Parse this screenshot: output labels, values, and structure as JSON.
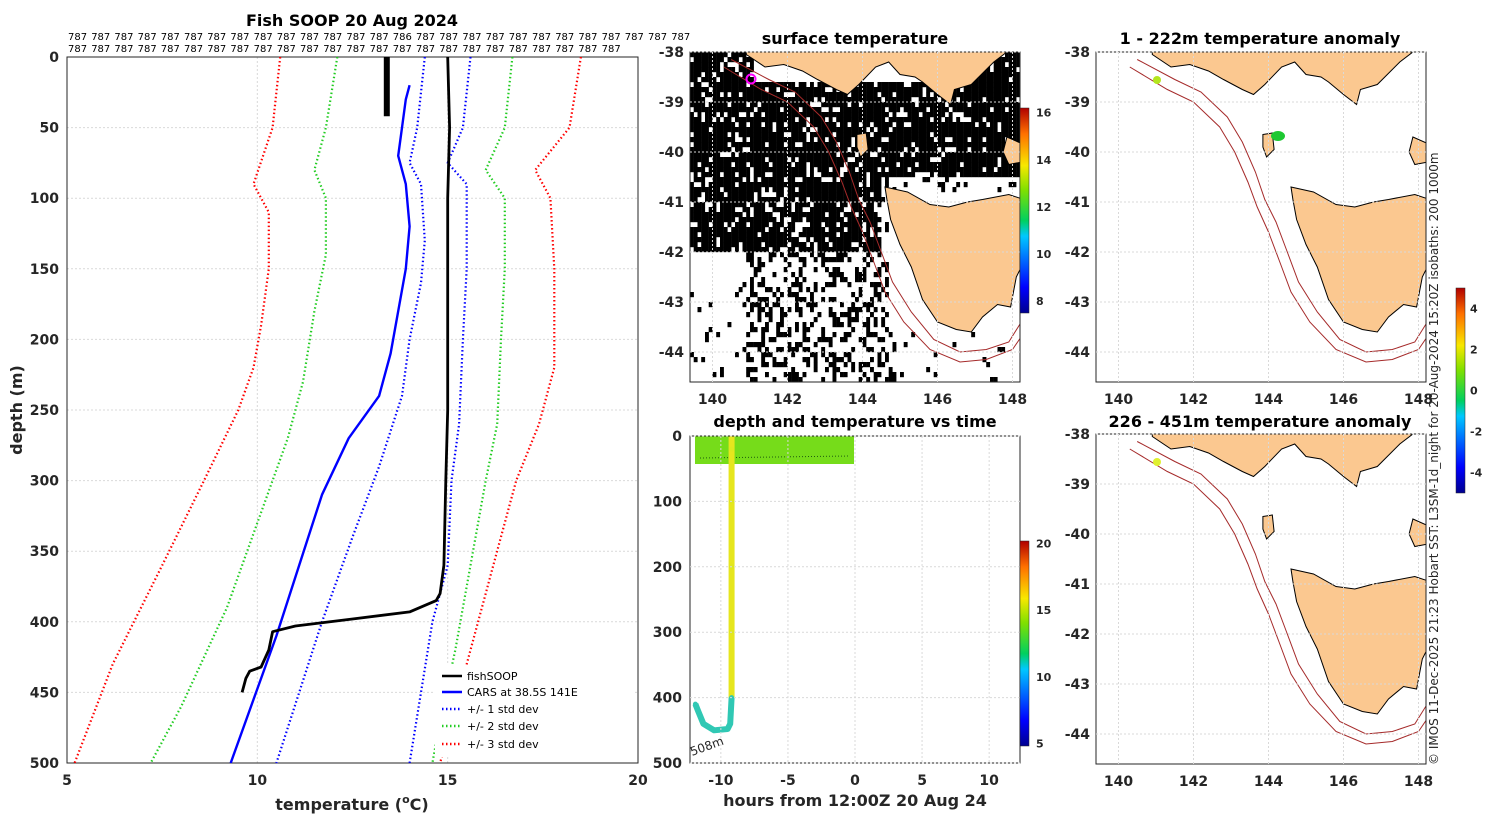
{
  "colors": {
    "fishsoop": "#000000",
    "cars": "#0000ff",
    "std1": "#0000ff",
    "std2": "#22cc22",
    "std3": "#ff0000",
    "land": "#fbc890",
    "isobath": "#a52a2a",
    "grid": "#d9d9d9"
  },
  "credit": "© IMOS 11-Dec-2025 21:23 Hobart SST: L3SM-1d_night for 20-Aug-2024 15:20Z isobaths: 200  1000m",
  "chart_data": [
    {
      "id": "profile",
      "type": "line",
      "title": "Fish SOOP 20 Aug 2024",
      "xlabel_main": "temperature (",
      "xlabel_sup": "o",
      "xlabel_end": "C)",
      "ylabel": "depth (m)",
      "xlim": [
        5,
        20
      ],
      "ylim": [
        0,
        500
      ],
      "xticks": [
        "5",
        "10",
        "15",
        "20"
      ],
      "yticks": [
        "0",
        "50",
        "100",
        "150",
        "200",
        "250",
        "300",
        "350",
        "400",
        "450",
        "500"
      ],
      "count_row1": [
        "787",
        "787",
        "787",
        "787",
        "787",
        "787",
        "787",
        "787",
        "787",
        "787",
        "787",
        "787",
        "787",
        "787",
        "786",
        "787",
        "787",
        "787",
        "787",
        "787",
        "787",
        "787",
        "787",
        "787",
        "787",
        "787",
        "787"
      ],
      "count_row2": [
        "787",
        "787",
        "787",
        "787",
        "787",
        "787",
        "787",
        "787",
        "787",
        "787",
        "787",
        "787",
        "787",
        "787",
        "787",
        "787",
        "787",
        "787",
        "787",
        "787",
        "787",
        "787",
        "787",
        "787"
      ],
      "legend": [
        "fishSOOP",
        "CARS at 38.5S 141E",
        "+/- 1 std dev",
        "+/- 2 std dev",
        "+/- 3 std dev"
      ],
      "series": [
        {
          "name": "fishSOOP",
          "points": [
            [
              15.0,
              0
            ],
            [
              15.05,
              50
            ],
            [
              15.0,
              100
            ],
            [
              15.0,
              150
            ],
            [
              15.0,
              250
            ],
            [
              14.95,
              300
            ],
            [
              14.9,
              360
            ],
            [
              14.8,
              380
            ],
            [
              14.7,
              385
            ],
            [
              14.0,
              393
            ],
            [
              12.5,
              398
            ],
            [
              11.0,
              403
            ],
            [
              10.4,
              407
            ],
            [
              10.3,
              420
            ],
            [
              10.1,
              432
            ],
            [
              9.8,
              435
            ],
            [
              9.7,
              440
            ],
            [
              9.6,
              450
            ]
          ]
        },
        {
          "name": "fishSOOP-stub",
          "points": [
            [
              13.4,
              0
            ],
            [
              13.4,
              42
            ]
          ]
        },
        {
          "name": "CARS",
          "points": [
            [
              14.0,
              20
            ],
            [
              13.9,
              30
            ],
            [
              13.8,
              50
            ],
            [
              13.7,
              70
            ],
            [
              13.9,
              90
            ],
            [
              14.0,
              120
            ],
            [
              13.9,
              150
            ],
            [
              13.7,
              180
            ],
            [
              13.5,
              210
            ],
            [
              13.2,
              240
            ],
            [
              12.4,
              270
            ],
            [
              11.7,
              310
            ],
            [
              11.1,
              360
            ],
            [
              10.5,
              410
            ],
            [
              9.9,
              455
            ],
            [
              9.3,
              500
            ]
          ]
        },
        {
          "name": "+1 std",
          "points": [
            [
              14.4,
              0
            ],
            [
              14.2,
              50
            ],
            [
              14.0,
              75
            ],
            [
              14.3,
              90
            ],
            [
              14.4,
              130
            ],
            [
              14.3,
              160
            ],
            [
              14.0,
              200
            ],
            [
              13.8,
              240
            ],
            [
              13.2,
              290
            ],
            [
              12.5,
              340
            ],
            [
              11.7,
              400
            ],
            [
              10.5,
              500
            ]
          ]
        },
        {
          "name": "-1 std",
          "points": [
            [
              15.6,
              0
            ],
            [
              15.4,
              50
            ],
            [
              15.0,
              75
            ],
            [
              15.5,
              90
            ],
            [
              15.5,
              150
            ],
            [
              15.4,
              200
            ],
            [
              15.3,
              260
            ],
            [
              15.1,
              300
            ],
            [
              15.0,
              360
            ],
            [
              14.6,
              400
            ],
            [
              14.3,
              450
            ],
            [
              14.0,
              500
            ]
          ]
        },
        {
          "name": "+2 std",
          "points": [
            [
              12.1,
              0
            ],
            [
              11.8,
              50
            ],
            [
              11.5,
              80
            ],
            [
              11.8,
              100
            ],
            [
              11.8,
              140
            ],
            [
              11.5,
              180
            ],
            [
              11.2,
              230
            ],
            [
              10.8,
              270
            ],
            [
              10.0,
              330
            ],
            [
              9.2,
              390
            ],
            [
              8.0,
              460
            ],
            [
              7.2,
              500
            ]
          ]
        },
        {
          "name": "-2 std",
          "points": [
            [
              16.7,
              0
            ],
            [
              16.5,
              50
            ],
            [
              16.0,
              80
            ],
            [
              16.5,
              100
            ],
            [
              16.5,
              150
            ],
            [
              16.4,
              200
            ],
            [
              16.3,
              260
            ],
            [
              16.0,
              300
            ],
            [
              15.6,
              360
            ],
            [
              15.2,
              420
            ],
            [
              14.8,
              470
            ],
            [
              14.6,
              500
            ]
          ]
        },
        {
          "name": "+3 std",
          "points": [
            [
              10.6,
              0
            ],
            [
              10.4,
              50
            ],
            [
              9.9,
              90
            ],
            [
              10.3,
              110
            ],
            [
              10.3,
              150
            ],
            [
              10.1,
              190
            ],
            [
              9.9,
              220
            ],
            [
              9.5,
              250
            ],
            [
              8.6,
              300
            ],
            [
              7.5,
              360
            ],
            [
              6.2,
              430
            ],
            [
              5.2,
              500
            ]
          ]
        },
        {
          "name": "-3 std",
          "points": [
            [
              18.5,
              0
            ],
            [
              18.2,
              50
            ],
            [
              17.3,
              80
            ],
            [
              17.7,
              100
            ],
            [
              17.8,
              150
            ],
            [
              17.8,
              220
            ],
            [
              17.4,
              260
            ],
            [
              16.8,
              300
            ],
            [
              16.2,
              360
            ],
            [
              15.6,
              420
            ],
            [
              15.1,
              470
            ],
            [
              14.8,
              500
            ]
          ]
        }
      ]
    },
    {
      "id": "sst-map",
      "type": "heatmap",
      "title": "surface temperature",
      "xlim": [
        139.4,
        148.2
      ],
      "ylim": [
        -44.6,
        -38
      ],
      "xticks": [
        "140",
        "142",
        "144",
        "146",
        "148"
      ],
      "yticks": [
        "-38",
        "-39",
        "-40",
        "-41",
        "-42",
        "-43",
        "-44"
      ],
      "colorbar_ticks": [
        "16",
        "14",
        "12",
        "10",
        "8"
      ],
      "colorbar_range": [
        7.5,
        16.2
      ]
    },
    {
      "id": "depth-time",
      "type": "scatter",
      "title": "depth and temperature vs time",
      "xlabel": "hours from 12:00Z 20 Aug 24",
      "xlim": [
        -12.3,
        12.3
      ],
      "ylim": [
        0,
        500
      ],
      "xticks": [
        "-10",
        "-5",
        "0",
        "5",
        "10"
      ],
      "yticks": [
        "0",
        "100",
        "200",
        "300",
        "400",
        "500"
      ],
      "colorbar_ticks": [
        "20",
        "15",
        "10",
        "5"
      ],
      "colorbar_range": [
        4.8,
        20.2
      ],
      "annotation": "508m",
      "points": [
        [
          -9.2,
          20
        ],
        [
          -9.2,
          100
        ],
        [
          -9.2,
          200
        ],
        [
          -9.2,
          300
        ],
        [
          -9.2,
          400
        ],
        [
          -9.3,
          440
        ],
        [
          -9.5,
          448
        ],
        [
          -10.5,
          450
        ],
        [
          -11.3,
          440
        ],
        [
          -11.7,
          420
        ],
        [
          -11.9,
          410
        ]
      ]
    },
    {
      "id": "anom-upper",
      "type": "heatmap",
      "title": "1 - 222m temperature anomaly",
      "xlim": [
        139.4,
        148.2
      ],
      "ylim": [
        -44.6,
        -38
      ],
      "xticks": [
        "140",
        "142",
        "144",
        "146",
        "148"
      ],
      "yticks": [
        "-38",
        "-39",
        "-40",
        "-41",
        "-42",
        "-43",
        "-44"
      ],
      "colorbar_ticks": [
        "4",
        "2",
        "0",
        "-2",
        "-4"
      ],
      "colorbar_range": [
        -5,
        5
      ]
    },
    {
      "id": "anom-lower",
      "type": "heatmap",
      "title": "226 - 451m temperature anomaly",
      "xlim": [
        139.4,
        148.2
      ],
      "ylim": [
        -44.6,
        -38
      ],
      "xticks": [
        "140",
        "142",
        "144",
        "146",
        "148"
      ],
      "yticks": [
        "-38",
        "-39",
        "-40",
        "-41",
        "-42",
        "-43",
        "-44"
      ]
    }
  ]
}
